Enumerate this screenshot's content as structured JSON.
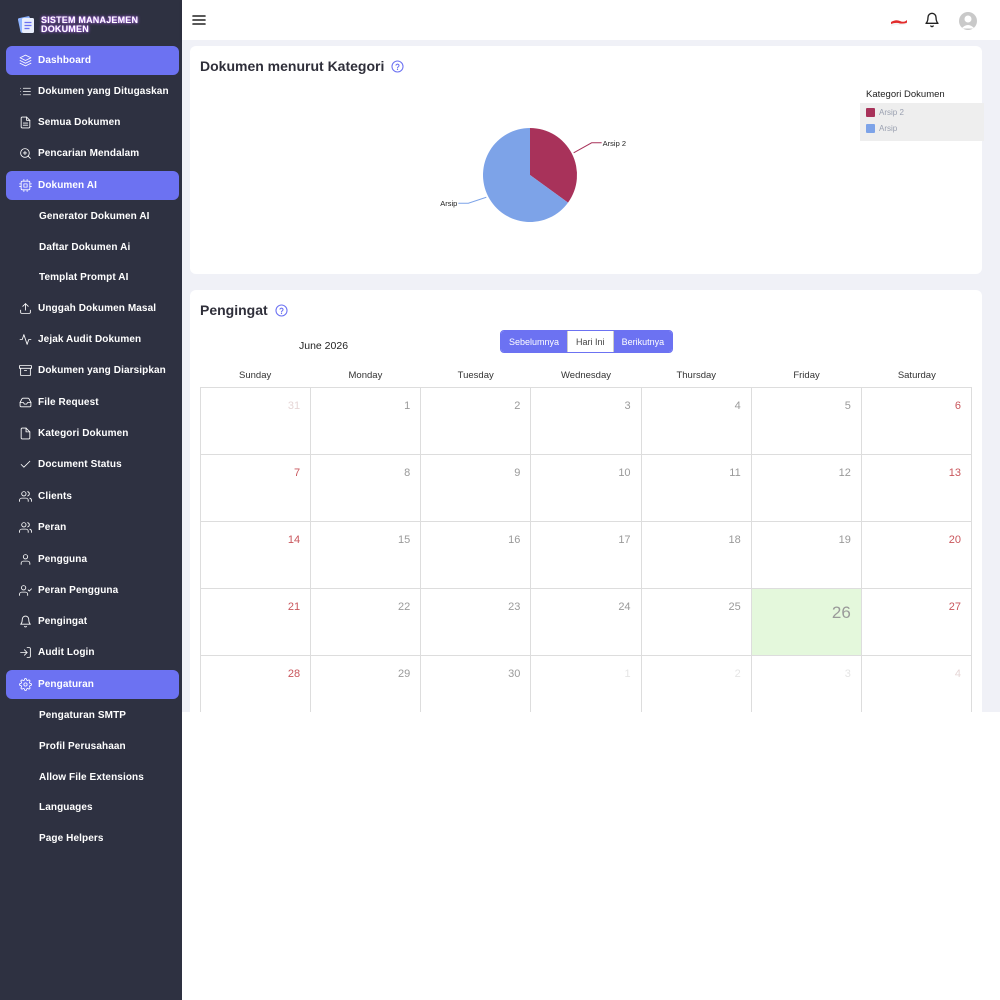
{
  "app": {
    "logo_line1": "SISTEM MANAJEMEN",
    "logo_line2": "DOKUMEN"
  },
  "sidebar": {
    "items": [
      {
        "label": "Dashboard",
        "icon": "layers-icon",
        "active": true
      },
      {
        "label": "Dokumen yang Ditugaskan",
        "icon": "list-icon"
      },
      {
        "label": "Semua Dokumen",
        "icon": "file-text-icon"
      },
      {
        "label": "Pencarian Mendalam",
        "icon": "zoom-in-icon"
      },
      {
        "label": "Dokumen AI",
        "icon": "cpu-icon",
        "active": true
      },
      {
        "label": "Generator Dokumen AI",
        "sub": true
      },
      {
        "label": "Daftar Dokumen Ai",
        "sub": true
      },
      {
        "label": "Templat Prompt AI",
        "sub": true
      },
      {
        "label": "Unggah Dokumen Masal",
        "icon": "upload-icon"
      },
      {
        "label": "Jejak Audit Dokumen",
        "icon": "activity-icon"
      },
      {
        "label": "Dokumen yang Diarsipkan",
        "icon": "archive-icon"
      },
      {
        "label": "File Request",
        "icon": "inbox-icon"
      },
      {
        "label": "Kategori Dokumen",
        "icon": "file-icon"
      },
      {
        "label": "Document Status",
        "icon": "check-icon"
      },
      {
        "label": "Clients",
        "icon": "users-icon"
      },
      {
        "label": "Peran",
        "icon": "users-icon"
      },
      {
        "label": "Pengguna",
        "icon": "user-icon"
      },
      {
        "label": "Peran Pengguna",
        "icon": "user-check-icon"
      },
      {
        "label": "Pengingat",
        "icon": "bell-icon"
      },
      {
        "label": "Audit Login",
        "icon": "log-in-icon"
      },
      {
        "label": "Pengaturan",
        "icon": "settings-icon",
        "active": true
      },
      {
        "label": "Pengaturan SMTP",
        "sub": true
      },
      {
        "label": "Profil Perusahaan",
        "sub": true
      },
      {
        "label": "Allow File Extensions",
        "sub": true
      },
      {
        "label": "Languages",
        "sub": true
      },
      {
        "label": "Page Helpers",
        "sub": true
      }
    ]
  },
  "colors": {
    "sidebar_bg": "#2e3141",
    "accent": "#6c72f2",
    "pie_arsip2": "#a8325a",
    "pie_arsip": "#7da3e8",
    "today_bg": "#e4f8dc"
  },
  "category_card": {
    "title": "Dokumen menurut Kategori",
    "legend_title": "Kategori Dokumen"
  },
  "chart_data": {
    "type": "pie",
    "categories": [
      "Arsip 2",
      "Arsip"
    ],
    "values": [
      35,
      65
    ],
    "legend_placement": "top-right"
  },
  "reminder_card": {
    "title": "Pengingat",
    "month_label": "June 2026",
    "buttons": {
      "prev": "Sebelumnya",
      "today": "Hari Ini",
      "next": "Berikutnya"
    },
    "weekdays": [
      "Sunday",
      "Monday",
      "Tuesday",
      "Wednesday",
      "Thursday",
      "Friday",
      "Saturday"
    ],
    "weeks": [
      [
        "31",
        "1",
        "2",
        "3",
        "4",
        "5",
        "6"
      ],
      [
        "7",
        "8",
        "9",
        "10",
        "11",
        "12",
        "13"
      ],
      [
        "14",
        "15",
        "16",
        "17",
        "18",
        "19",
        "20"
      ],
      [
        "21",
        "22",
        "23",
        "24",
        "25",
        "26",
        "27"
      ],
      [
        "28",
        "29",
        "30",
        "1",
        "2",
        "3",
        "4"
      ]
    ],
    "today": "26"
  }
}
